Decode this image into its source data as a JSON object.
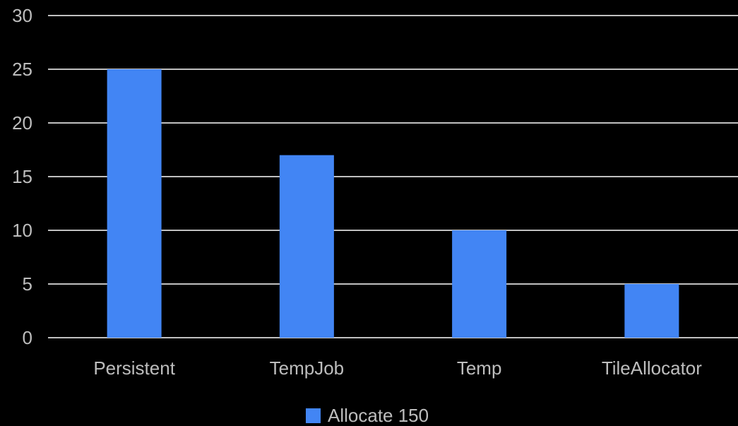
{
  "chart_data": {
    "type": "bar",
    "title": "",
    "xlabel": "",
    "ylabel": "",
    "categories": [
      "Persistent",
      "TempJob",
      "Temp",
      "TileAllocator"
    ],
    "series": [
      {
        "name": "Allocate 150",
        "values": [
          25,
          17,
          10,
          5
        ],
        "color": "#4285f4"
      }
    ],
    "ylim": [
      0,
      30
    ],
    "yticks": [
      0,
      5,
      10,
      15,
      20,
      25,
      30
    ],
    "grid": true,
    "legend_position": "bottom",
    "background_color": "#000000",
    "gridline_color": "#ffffff",
    "text_color": "#bdbdbd"
  }
}
